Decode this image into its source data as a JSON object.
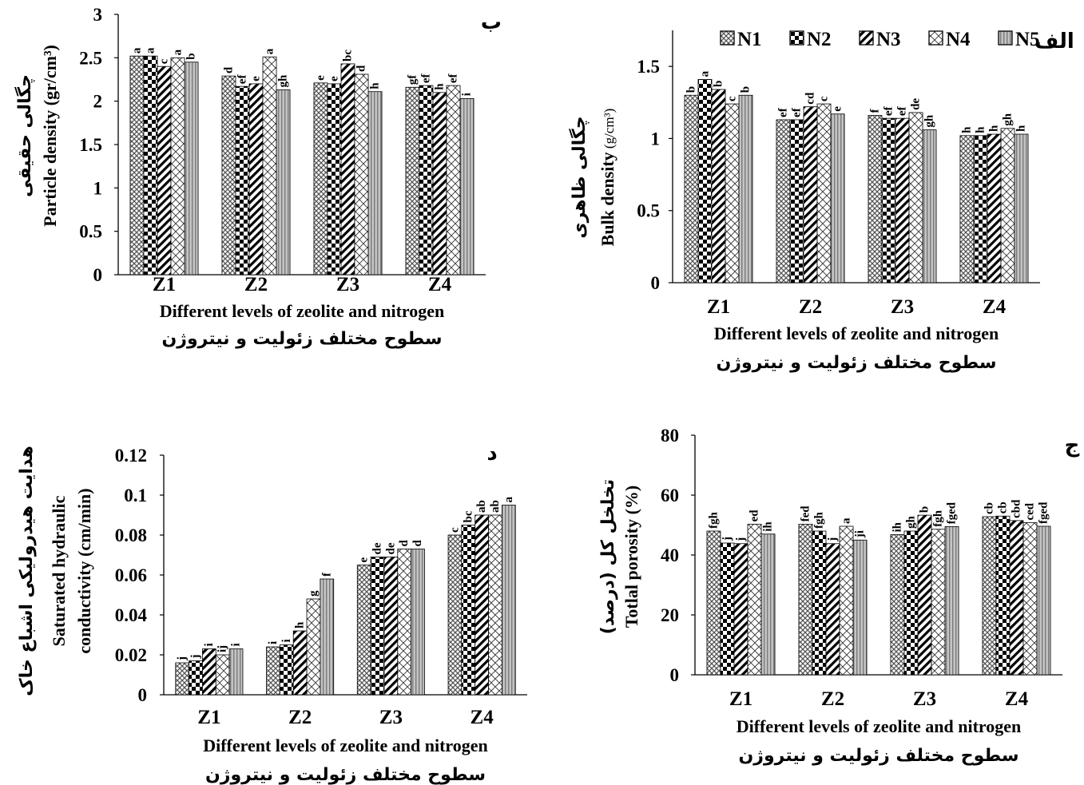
{
  "legend": {
    "items": [
      {
        "name": "N1",
        "pattern": "pat-n1"
      },
      {
        "name": "N2",
        "pattern": "pat-n2"
      },
      {
        "name": "N3",
        "pattern": "pat-n3"
      },
      {
        "name": "N4",
        "pattern": "pat-n4"
      },
      {
        "name": "N5",
        "pattern": "pat-n5"
      }
    ]
  },
  "chart_data": [
    {
      "panel": "ب",
      "type": "bar",
      "ylabel_fa": "چگالی حقیقی",
      "ylabel_en": "Particle density (gr/cm³)",
      "xlabel_en": "Different levels of zeolite and nitrogen",
      "xlabel_fa": "سطوح مختلف زئولیت و نیتروژن",
      "categories": [
        "Z1",
        "Z2",
        "Z3",
        "Z4"
      ],
      "ylim": [
        0,
        3
      ],
      "yticks": [
        0,
        0.5,
        1,
        1.5,
        2,
        2.5,
        3
      ],
      "series": [
        {
          "name": "N1",
          "values": [
            2.52,
            2.29,
            2.21,
            2.16
          ],
          "letters": [
            "a",
            "d",
            "e",
            "gf"
          ]
        },
        {
          "name": "N2",
          "values": [
            2.52,
            2.17,
            2.2,
            2.18
          ],
          "letters": [
            "a",
            "ef",
            "e",
            "ef"
          ]
        },
        {
          "name": "N3",
          "values": [
            2.4,
            2.2,
            2.43,
            2.1
          ],
          "letters": [
            "c",
            "e",
            "bc",
            "h"
          ]
        },
        {
          "name": "N4",
          "values": [
            2.5,
            2.51,
            2.31,
            2.18
          ],
          "letters": [
            "a",
            "a",
            "d",
            "ef"
          ]
        },
        {
          "name": "N5",
          "values": [
            2.45,
            2.13,
            2.11,
            2.03
          ],
          "letters": [
            "b",
            "gh",
            "h",
            "i"
          ]
        }
      ]
    },
    {
      "panel": "الف",
      "type": "bar",
      "ylabel_fa": "چگالی ظاهری",
      "ylabel_en": "Bulk density",
      "ylabel_unit": "(g/cm³)",
      "xlabel_en": "Different levels of zeolite and nitrogen",
      "xlabel_fa": "سطوح مختلف زئولیت و نیتروژن",
      "categories": [
        "Z1",
        "Z2",
        "Z3",
        "Z4"
      ],
      "ylim": [
        0,
        1.75
      ],
      "yticks": [
        0,
        0.5,
        1,
        1.5
      ],
      "series": [
        {
          "name": "N1",
          "values": [
            1.3,
            1.13,
            1.16,
            1.02
          ],
          "letters": [
            "b",
            "ef",
            "f",
            "h"
          ]
        },
        {
          "name": "N2",
          "values": [
            1.41,
            1.13,
            1.14,
            1.02
          ],
          "letters": [
            "a",
            "ef",
            "ef",
            "h"
          ]
        },
        {
          "name": "N3",
          "values": [
            1.34,
            1.22,
            1.14,
            1.03
          ],
          "letters": [
            "b",
            "cd",
            "ef",
            "h"
          ]
        },
        {
          "name": "N4",
          "values": [
            1.24,
            1.24,
            1.18,
            1.07
          ],
          "letters": [
            "c",
            "c",
            "de",
            "gh"
          ]
        },
        {
          "name": "N5",
          "values": [
            1.3,
            1.17,
            1.06,
            1.03
          ],
          "letters": [
            "b",
            "e",
            "gh",
            "h"
          ]
        }
      ]
    },
    {
      "panel": "د",
      "type": "bar",
      "ylabel_fa": "هدایت هیدرولیکی اشباع خاک",
      "ylabel_en_line1": "Saturated hydraulic",
      "ylabel_en_line2": "conductivity (cm/min)",
      "xlabel_en": "Different levels of zeolite and nitrogen",
      "xlabel_fa": "سطوح مختلف زئولیت و نیتروژن",
      "categories": [
        "Z1",
        "Z2",
        "Z3",
        "Z4"
      ],
      "ylim": [
        0,
        0.12
      ],
      "yticks": [
        0,
        0.02,
        0.04,
        0.06,
        0.08,
        0.1,
        0.12
      ],
      "series": [
        {
          "name": "N1",
          "values": [
            0.016,
            0.024,
            0.065,
            0.08
          ],
          "letters": [
            "j",
            "i",
            "e",
            "c"
          ]
        },
        {
          "name": "N2",
          "values": [
            0.017,
            0.025,
            0.069,
            0.085
          ],
          "letters": [
            "j",
            "i",
            "de",
            "bc"
          ]
        },
        {
          "name": "N3",
          "values": [
            0.023,
            0.032,
            0.069,
            0.09
          ],
          "letters": [
            "i",
            "h",
            "de",
            "ab"
          ]
        },
        {
          "name": "N4",
          "values": [
            0.02,
            0.048,
            0.073,
            0.09
          ],
          "letters": [
            "ij",
            "g",
            "d",
            "ab"
          ]
        },
        {
          "name": "N5",
          "values": [
            0.023,
            0.058,
            0.073,
            0.095
          ],
          "letters": [
            "i",
            "f",
            "d",
            "a"
          ]
        }
      ]
    },
    {
      "panel": "ج",
      "type": "bar",
      "ylabel_fa": "تخلخل کل (درصد)",
      "ylabel_en": "Totlal porosity (%)",
      "xlabel_en": "Different levels of zeolite and nitrogen",
      "xlabel_fa": "سطوح مختلف زئولیت و نیتروژن",
      "categories": [
        "Z1",
        "Z2",
        "Z3",
        "Z4"
      ],
      "ylim": [
        0,
        80
      ],
      "yticks": [
        0,
        20,
        40,
        60,
        80
      ],
      "series": [
        {
          "name": "N1",
          "values": [
            48,
            50.3,
            46.8,
            52.8
          ],
          "letters": [
            "fgh",
            "fed",
            "ih",
            "cb"
          ]
        },
        {
          "name": "N2",
          "values": [
            44,
            48,
            48,
            53
          ],
          "letters": [
            "j",
            "fgh",
            "gh",
            "cb"
          ]
        },
        {
          "name": "N3",
          "values": [
            43.8,
            43.8,
            53.3,
            51.5
          ],
          "letters": [
            "j",
            "j",
            "b",
            "cbd"
          ]
        },
        {
          "name": "N4",
          "values": [
            50.3,
            49.6,
            48.6,
            50.8
          ],
          "letters": [
            "ed",
            "a",
            "fgh",
            "ced"
          ]
        },
        {
          "name": "N5",
          "values": [
            47,
            45,
            49.5,
            49.6
          ],
          "letters": [
            "ih",
            "ji",
            "fged",
            "fged"
          ]
        }
      ]
    }
  ]
}
